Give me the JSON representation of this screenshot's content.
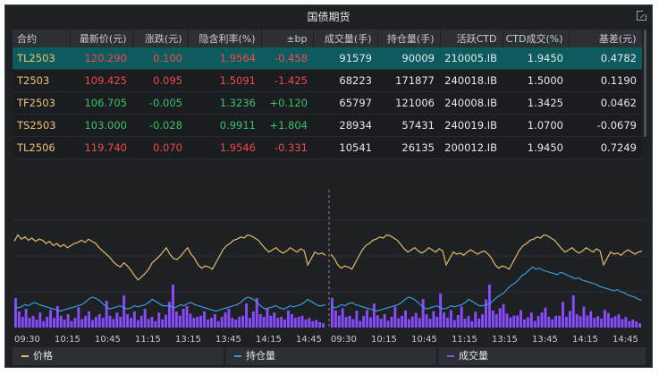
{
  "title": "国债期货",
  "columns": [
    "合约",
    "最新价(元)",
    "涨跌(元)",
    "隐含利率(%)",
    "±bp",
    "成交量(手)",
    "持仓量(手)",
    "活跃CTD",
    "CTD成交(%)",
    "基差(元)"
  ],
  "rows": [
    {
      "symbol": "TL2503",
      "price": "120.290",
      "change": "0.100",
      "rate": "1.9564",
      "bp": "-0.458",
      "volume": "91579",
      "oi": "90009",
      "ctd": "210005.IB",
      "ctd_pct": "1.9450",
      "basis": "0.4782",
      "selected": true,
      "dir": "up",
      "bpdir": "up",
      "ratedir": "up"
    },
    {
      "symbol": "T2503",
      "price": "109.425",
      "change": "0.095",
      "rate": "1.5091",
      "bp": "-1.425",
      "volume": "68223",
      "oi": "171877",
      "ctd": "240018.IB",
      "ctd_pct": "1.5000",
      "basis": "0.1190",
      "selected": false,
      "dir": "up",
      "bpdir": "up",
      "ratedir": "up"
    },
    {
      "symbol": "TF2503",
      "price": "106.705",
      "change": "-0.005",
      "rate": "1.3236",
      "bp": "+0.120",
      "volume": "65797",
      "oi": "121006",
      "ctd": "240008.IB",
      "ctd_pct": "1.3425",
      "basis": "0.0462",
      "selected": false,
      "dir": "dn",
      "bpdir": "dn",
      "ratedir": "dn"
    },
    {
      "symbol": "TS2503",
      "price": "103.000",
      "change": "-0.028",
      "rate": "0.9911",
      "bp": "+1.804",
      "volume": "28934",
      "oi": "57431",
      "ctd": "240019.IB",
      "ctd_pct": "1.0700",
      "basis": "-0.0679",
      "selected": false,
      "dir": "dn",
      "bpdir": "dn",
      "ratedir": "dn"
    },
    {
      "symbol": "TL2506",
      "price": "119.740",
      "change": "0.070",
      "rate": "1.9546",
      "bp": "-0.331",
      "volume": "10541",
      "oi": "26135",
      "ctd": "200012.IB",
      "ctd_pct": "1.9450",
      "basis": "0.7249",
      "selected": false,
      "dir": "up",
      "bpdir": "up",
      "ratedir": "up"
    }
  ],
  "x_ticks": [
    "09:30",
    "10:15",
    "10:45",
    "11:15",
    "13:15",
    "13:45",
    "14:15",
    "14:45",
    "09:30",
    "10:15",
    "10:45",
    "11:15",
    "13:15",
    "13:45",
    "14:15",
    "14:45"
  ],
  "legend": {
    "price": "价格",
    "oi": "持仓量",
    "volume": "成交量"
  },
  "colors": {
    "price": "#e8b86a",
    "oi": "#3b9ad9",
    "volume": "#8a4bff",
    "up": "#f04a4a",
    "down": "#39c26a",
    "selected_row": "#0d5b5e"
  },
  "chart_data": {
    "type": "line",
    "title": "",
    "series": [
      {
        "name": "价格",
        "kind": "line",
        "values": [
          0.72,
          0.78,
          0.74,
          0.76,
          0.73,
          0.75,
          0.72,
          0.74,
          0.73,
          0.7,
          0.72,
          0.68,
          0.7,
          0.67,
          0.69,
          0.66,
          0.68,
          0.7,
          0.71,
          0.73,
          0.71,
          0.74,
          0.72,
          0.7,
          0.66,
          0.63,
          0.6,
          0.57,
          0.53,
          0.5,
          0.48,
          0.52,
          0.49,
          0.45,
          0.4,
          0.36,
          0.39,
          0.42,
          0.46,
          0.52,
          0.55,
          0.58,
          0.62,
          0.66,
          0.6,
          0.56,
          0.5,
          0.47,
          0.49,
          0.48,
          0.46,
          0.52,
          0.58,
          0.64,
          0.68,
          0.7,
          0.73,
          0.74,
          0.76,
          0.75,
          0.78,
          0.77,
          0.75,
          0.73,
          0.69,
          0.65,
          0.62,
          0.64,
          0.66,
          0.63,
          0.61,
          0.63,
          0.66,
          0.64,
          0.62,
          0.65,
          0.63,
          0.5,
          0.56,
          0.62,
          0.6,
          0.61,
          0.59,
          0.62,
          0.64,
          0.62,
          0.6,
          0.62,
          0.63
        ]
      },
      {
        "name": "持仓量",
        "kind": "line",
        "values": [
          0.12,
          0.1,
          0.11,
          0.13,
          0.12,
          0.14,
          0.15,
          0.13,
          0.12,
          0.11,
          0.1,
          0.09,
          0.08,
          0.07,
          0.08,
          0.09,
          0.1,
          0.11,
          0.12,
          0.13,
          0.15,
          0.18,
          0.2,
          0.19,
          0.17,
          0.14,
          0.11,
          0.09,
          0.1,
          0.11,
          0.12,
          0.1,
          0.09,
          0.1,
          0.12,
          0.11,
          0.12,
          0.13,
          0.15,
          0.18,
          0.16,
          0.14,
          0.12,
          0.12,
          0.13,
          0.14,
          0.17,
          0.2,
          0.22,
          0.24,
          0.28,
          0.31,
          0.33,
          0.36,
          0.4,
          0.42,
          0.45,
          0.48,
          0.46,
          0.47,
          0.45,
          0.44,
          0.43,
          0.42,
          0.41,
          0.43,
          0.42,
          0.4,
          0.39,
          0.37,
          0.38,
          0.36,
          0.35,
          0.34,
          0.33,
          0.32,
          0.3,
          0.29,
          0.28,
          0.27,
          0.26,
          0.27,
          0.25,
          0.24,
          0.22,
          0.21,
          0.2,
          0.18,
          0.17
        ]
      },
      {
        "name": "成交量",
        "kind": "bar",
        "values": [
          0.55,
          0.3,
          0.2,
          0.35,
          0.18,
          0.22,
          0.15,
          0.28,
          0.12,
          0.2,
          0.33,
          0.18,
          0.4,
          0.22,
          0.15,
          0.25,
          0.12,
          0.18,
          0.38,
          0.16,
          0.22,
          0.3,
          0.14,
          0.2,
          0.25,
          0.18,
          0.5,
          0.22,
          0.16,
          0.28,
          0.2,
          0.6,
          0.25,
          0.18,
          0.3,
          0.14,
          0.22,
          0.35,
          0.16,
          0.2,
          0.12,
          0.28,
          0.15,
          0.24,
          0.48,
          0.8,
          0.3,
          0.22,
          0.35,
          0.4,
          0.26,
          0.18,
          0.2,
          0.22,
          0.3,
          0.15,
          0.18,
          0.25,
          0.12,
          0.2,
          0.28,
          0.35,
          0.18,
          0.15,
          0.2,
          0.22,
          0.45,
          0.18,
          0.3,
          0.55,
          0.25,
          0.2,
          0.35,
          0.22,
          0.28,
          0.18,
          0.2,
          0.15,
          0.32,
          0.25,
          0.18,
          0.2,
          0.22,
          0.15,
          0.18,
          0.12,
          0.14,
          0.1,
          0.08
        ]
      }
    ]
  }
}
